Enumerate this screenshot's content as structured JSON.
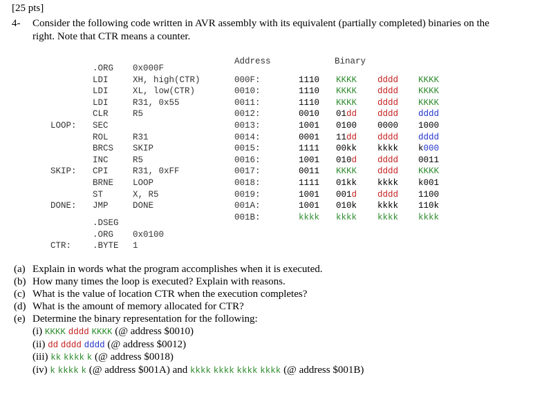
{
  "header": {
    "points": "[25 pts]",
    "number": "4-",
    "line1": "Consider the following code written in AVR assembly with its equivalent (partially completed) binaries on the",
    "line2": "right. Note that CTR means a counter."
  },
  "code": {
    "address_header": "Address",
    "binary_header": "Binary",
    "rows": [
      {
        "label": "",
        "mnemonic": ".ORG",
        "operand": "0x000F",
        "address": "",
        "bin": []
      },
      {
        "label": "",
        "mnemonic": "LDI",
        "operand": "XH, high(CTR)",
        "address": "000F:",
        "bin": [
          {
            "t": "1110",
            "c": "blk"
          },
          {
            "t": "KKKK",
            "c": "k"
          },
          {
            "t": "dddd",
            "c": "d"
          },
          {
            "t": "KKKK",
            "c": "k"
          }
        ]
      },
      {
        "label": "",
        "mnemonic": "LDI",
        "operand": "XL, low(CTR)",
        "address": "0010:",
        "bin": [
          {
            "t": "1110",
            "c": "blk"
          },
          {
            "t": "KKKK",
            "c": "k"
          },
          {
            "t": "dddd",
            "c": "d"
          },
          {
            "t": "KKKK",
            "c": "k"
          }
        ]
      },
      {
        "label": "",
        "mnemonic": "LDI",
        "operand": "R31, 0x55",
        "address": "0011:",
        "bin": [
          {
            "t": "1110",
            "c": "blk"
          },
          {
            "t": "KKKK",
            "c": "k"
          },
          {
            "t": "dddd",
            "c": "d"
          },
          {
            "t": "KKKK",
            "c": "k"
          }
        ]
      },
      {
        "label": "",
        "mnemonic": "CLR",
        "operand": "R5",
        "address": "0012:",
        "bin": [
          {
            "t": "0010",
            "c": "blk"
          },
          {
            "parts": [
              {
                "t": "01",
                "c": "blk"
              },
              {
                "t": "dd",
                "c": "d"
              }
            ]
          },
          {
            "t": "dddd",
            "c": "d"
          },
          {
            "t": "dddd",
            "c": "b"
          }
        ]
      },
      {
        "label": "LOOP:",
        "mnemonic": "SEC",
        "operand": "",
        "address": "0013:",
        "bin": [
          {
            "t": "1001",
            "c": "blk"
          },
          {
            "t": "0100",
            "c": "blk"
          },
          {
            "t": "0000",
            "c": "blk"
          },
          {
            "t": "1000",
            "c": "blk"
          }
        ]
      },
      {
        "label": "",
        "mnemonic": "ROL",
        "operand": "R31",
        "address": "0014:",
        "bin": [
          {
            "t": "0001",
            "c": "blk"
          },
          {
            "parts": [
              {
                "t": "11",
                "c": "blk"
              },
              {
                "t": "dd",
                "c": "d"
              }
            ]
          },
          {
            "t": "dddd",
            "c": "d"
          },
          {
            "t": "dddd",
            "c": "b"
          }
        ]
      },
      {
        "label": "",
        "mnemonic": "BRCS",
        "operand": "SKIP",
        "address": "0015:",
        "bin": [
          {
            "t": "1111",
            "c": "blk"
          },
          {
            "t": "00kk",
            "c": "blk"
          },
          {
            "t": "kkkk",
            "c": "blk"
          },
          {
            "parts": [
              {
                "t": "k",
                "c": "blk"
              },
              {
                "t": "000",
                "c": "b"
              }
            ]
          }
        ]
      },
      {
        "label": "",
        "mnemonic": "INC",
        "operand": "R5",
        "address": "0016:",
        "bin": [
          {
            "t": "1001",
            "c": "blk"
          },
          {
            "parts": [
              {
                "t": "010",
                "c": "blk"
              },
              {
                "t": "d",
                "c": "d"
              }
            ]
          },
          {
            "t": "dddd",
            "c": "d"
          },
          {
            "t": "0011",
            "c": "blk"
          }
        ]
      },
      {
        "label": "SKIP:",
        "mnemonic": "CPI",
        "operand": "R31, 0xFF",
        "address": "0017:",
        "bin": [
          {
            "t": "0011",
            "c": "blk"
          },
          {
            "t": "KKKK",
            "c": "k"
          },
          {
            "t": "dddd",
            "c": "d"
          },
          {
            "t": "KKKK",
            "c": "k"
          }
        ]
      },
      {
        "label": "",
        "mnemonic": "BRNE",
        "operand": "LOOP",
        "address": "0018:",
        "bin": [
          {
            "t": "1111",
            "c": "blk"
          },
          {
            "t": "01kk",
            "c": "blk"
          },
          {
            "t": "kkkk",
            "c": "blk"
          },
          {
            "t": "k001",
            "c": "blk"
          }
        ]
      },
      {
        "label": "",
        "mnemonic": "ST",
        "operand": "X, R5",
        "address": "0019:",
        "bin": [
          {
            "t": "1001",
            "c": "blk"
          },
          {
            "parts": [
              {
                "t": "001",
                "c": "blk"
              },
              {
                "t": "d",
                "c": "d"
              }
            ]
          },
          {
            "t": "dddd",
            "c": "d"
          },
          {
            "t": "1100",
            "c": "blk"
          }
        ]
      },
      {
        "label": "DONE:",
        "mnemonic": "JMP",
        "operand": "DONE",
        "address": "001A:",
        "bin": [
          {
            "t": "1001",
            "c": "blk"
          },
          {
            "t": "010k",
            "c": "blk"
          },
          {
            "t": "kkkk",
            "c": "blk"
          },
          {
            "t": "110k",
            "c": "blk"
          }
        ]
      },
      {
        "label": "",
        "mnemonic": "",
        "operand": "",
        "address": "001B:",
        "bin": [
          {
            "t": "kkkk",
            "c": "k"
          },
          {
            "t": "kkkk",
            "c": "k"
          },
          {
            "t": "kkkk",
            "c": "k"
          },
          {
            "t": "kkkk",
            "c": "k"
          }
        ]
      }
    ],
    "dseg_rows": [
      {
        "label": "",
        "mnemonic": ".DSEG",
        "operand": ""
      },
      {
        "label": "",
        "mnemonic": ".ORG",
        "operand": "0x0100"
      },
      {
        "label": "CTR:",
        "mnemonic": ".BYTE",
        "operand": "1"
      }
    ]
  },
  "questions": [
    {
      "id": "(a)",
      "text": "Explain in words what the program accomplishes when it is executed."
    },
    {
      "id": "(b)",
      "text": "How many times the loop is executed? Explain with reasons."
    },
    {
      "id": "(c)",
      "text": "What is the value of location CTR when the execution completes?"
    },
    {
      "id": "(d)",
      "text": "What is the amount of memory allocated for CTR?"
    },
    {
      "id": "(e)",
      "text": "Determine the binary representation for the following:"
    }
  ],
  "subquestions": [
    {
      "id": "(i)",
      "codes": [
        {
          "t": "KKKK",
          "c": "k"
        },
        {
          "t": "dddd",
          "c": "d"
        },
        {
          "t": "KKKK",
          "c": "k"
        }
      ],
      "tail": "(@ address $0010)"
    },
    {
      "id": "(ii)",
      "codes": [
        {
          "t": "dd",
          "c": "d"
        },
        {
          "t": "dddd",
          "c": "d"
        },
        {
          "t": "dddd",
          "c": "b"
        }
      ],
      "tail": "(@ address $0012)"
    },
    {
      "id": "(iii)",
      "codes": [
        {
          "t": "kk",
          "c": "k"
        },
        {
          "t": "kkkk",
          "c": "k"
        },
        {
          "t": "k",
          "c": "k"
        }
      ],
      "tail": "(@ address $0018)"
    },
    {
      "id": "(iv)",
      "codes": [
        {
          "t": "k",
          "c": "k"
        },
        {
          "t": "kkkk",
          "c": "k"
        },
        {
          "t": "k",
          "c": "k"
        }
      ],
      "tail": "(@ address $001A) and",
      "codes2": [
        {
          "t": "kkkk",
          "c": "k"
        },
        {
          "t": "kkkk",
          "c": "k"
        },
        {
          "t": "kkkk",
          "c": "k"
        },
        {
          "t": "kkkk",
          "c": "k"
        }
      ],
      "tail2": "(@ address $001B)"
    }
  ],
  "colors": {
    "immediate_k": "#2e8b2e",
    "register_d": "#c41e1e",
    "register_d2": "#2233cc"
  }
}
